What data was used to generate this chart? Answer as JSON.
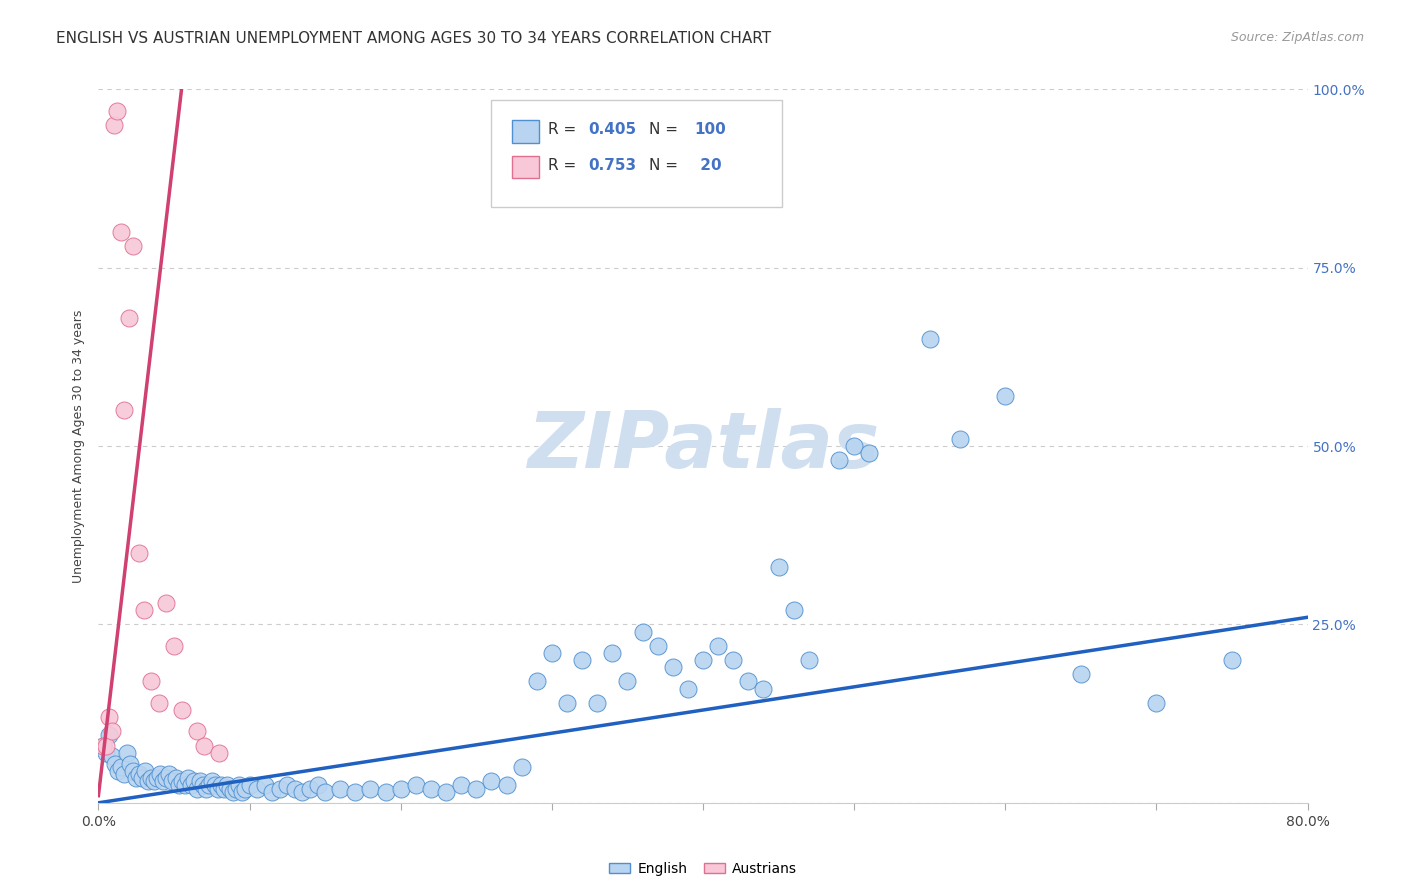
{
  "title": "ENGLISH VS AUSTRIAN UNEMPLOYMENT AMONG AGES 30 TO 34 YEARS CORRELATION CHART",
  "source": "Source: ZipAtlas.com",
  "ylabel": "Unemployment Among Ages 30 to 34 years",
  "english_R": "0.405",
  "english_N": "100",
  "austrian_R": "0.753",
  "austrian_N": "20",
  "english_color": "#b8d4f0",
  "english_edge_color": "#5090d0",
  "austrian_color": "#f8c8d8",
  "austrian_edge_color": "#e07090",
  "english_trend_color": "#2060c0",
  "austrian_trend_color": "#d04070",
  "watermark_color": "#d0dff0",
  "english_points": [
    [
      0.3,
      8.0
    ],
    [
      0.5,
      7.0
    ],
    [
      0.7,
      9.5
    ],
    [
      0.9,
      6.5
    ],
    [
      1.1,
      5.5
    ],
    [
      1.3,
      4.5
    ],
    [
      1.5,
      5.0
    ],
    [
      1.7,
      4.0
    ],
    [
      1.9,
      7.0
    ],
    [
      2.1,
      5.5
    ],
    [
      2.3,
      4.5
    ],
    [
      2.5,
      3.5
    ],
    [
      2.7,
      4.0
    ],
    [
      2.9,
      3.5
    ],
    [
      3.1,
      4.5
    ],
    [
      3.3,
      3.0
    ],
    [
      3.5,
      3.5
    ],
    [
      3.7,
      3.0
    ],
    [
      3.9,
      3.5
    ],
    [
      4.1,
      4.0
    ],
    [
      4.3,
      3.0
    ],
    [
      4.5,
      3.5
    ],
    [
      4.7,
      4.0
    ],
    [
      4.9,
      3.0
    ],
    [
      5.1,
      3.5
    ],
    [
      5.3,
      2.5
    ],
    [
      5.5,
      3.0
    ],
    [
      5.7,
      2.5
    ],
    [
      5.9,
      3.5
    ],
    [
      6.1,
      2.5
    ],
    [
      6.3,
      3.0
    ],
    [
      6.5,
      2.0
    ],
    [
      6.7,
      3.0
    ],
    [
      6.9,
      2.5
    ],
    [
      7.1,
      2.0
    ],
    [
      7.3,
      2.5
    ],
    [
      7.5,
      3.0
    ],
    [
      7.7,
      2.5
    ],
    [
      7.9,
      2.0
    ],
    [
      8.1,
      2.5
    ],
    [
      8.3,
      2.0
    ],
    [
      8.5,
      2.5
    ],
    [
      8.7,
      2.0
    ],
    [
      8.9,
      1.5
    ],
    [
      9.1,
      2.0
    ],
    [
      9.3,
      2.5
    ],
    [
      9.5,
      1.5
    ],
    [
      9.7,
      2.0
    ],
    [
      10.0,
      2.5
    ],
    [
      10.5,
      2.0
    ],
    [
      11.0,
      2.5
    ],
    [
      11.5,
      1.5
    ],
    [
      12.0,
      2.0
    ],
    [
      12.5,
      2.5
    ],
    [
      13.0,
      2.0
    ],
    [
      13.5,
      1.5
    ],
    [
      14.0,
      2.0
    ],
    [
      14.5,
      2.5
    ],
    [
      15.0,
      1.5
    ],
    [
      16.0,
      2.0
    ],
    [
      17.0,
      1.5
    ],
    [
      18.0,
      2.0
    ],
    [
      19.0,
      1.5
    ],
    [
      20.0,
      2.0
    ],
    [
      21.0,
      2.5
    ],
    [
      22.0,
      2.0
    ],
    [
      23.0,
      1.5
    ],
    [
      24.0,
      2.5
    ],
    [
      25.0,
      2.0
    ],
    [
      26.0,
      3.0
    ],
    [
      27.0,
      2.5
    ],
    [
      28.0,
      5.0
    ],
    [
      29.0,
      17.0
    ],
    [
      30.0,
      21.0
    ],
    [
      31.0,
      14.0
    ],
    [
      32.0,
      20.0
    ],
    [
      33.0,
      14.0
    ],
    [
      34.0,
      21.0
    ],
    [
      35.0,
      17.0
    ],
    [
      36.0,
      24.0
    ],
    [
      37.0,
      22.0
    ],
    [
      38.0,
      19.0
    ],
    [
      39.0,
      16.0
    ],
    [
      40.0,
      20.0
    ],
    [
      41.0,
      22.0
    ],
    [
      42.0,
      20.0
    ],
    [
      43.0,
      17.0
    ],
    [
      44.0,
      16.0
    ],
    [
      45.0,
      33.0
    ],
    [
      46.0,
      27.0
    ],
    [
      47.0,
      20.0
    ],
    [
      49.0,
      48.0
    ],
    [
      50.0,
      50.0
    ],
    [
      51.0,
      49.0
    ],
    [
      55.0,
      65.0
    ],
    [
      57.0,
      51.0
    ],
    [
      60.0,
      57.0
    ],
    [
      65.0,
      18.0
    ],
    [
      70.0,
      14.0
    ],
    [
      75.0,
      20.0
    ]
  ],
  "austrian_points": [
    [
      0.3,
      8.0
    ],
    [
      0.5,
      8.0
    ],
    [
      0.7,
      12.0
    ],
    [
      0.9,
      10.0
    ],
    [
      1.0,
      95.0
    ],
    [
      1.2,
      97.0
    ],
    [
      1.5,
      80.0
    ],
    [
      1.7,
      55.0
    ],
    [
      2.0,
      68.0
    ],
    [
      2.3,
      78.0
    ],
    [
      2.7,
      35.0
    ],
    [
      3.0,
      27.0
    ],
    [
      3.5,
      17.0
    ],
    [
      4.0,
      14.0
    ],
    [
      4.5,
      28.0
    ],
    [
      5.0,
      22.0
    ],
    [
      5.5,
      13.0
    ],
    [
      6.5,
      10.0
    ],
    [
      7.0,
      8.0
    ],
    [
      8.0,
      7.0
    ]
  ],
  "english_trend": [
    0.0,
    0.0,
    80.0,
    26.0
  ],
  "austrian_trend": [
    0.0,
    1.0,
    5.5,
    100.0
  ],
  "xlim": [
    0.0,
    80.0
  ],
  "ylim": [
    0.0,
    100.0
  ],
  "yticks": [
    0,
    25,
    50,
    75,
    100
  ],
  "ytick_labels": [
    "",
    "25.0%",
    "50.0%",
    "75.0%",
    "100.0%"
  ],
  "xtick_labels_left": "0.0%",
  "xtick_labels_right": "80.0%",
  "grid_color": "#cccccc",
  "background_color": "#ffffff",
  "title_fontsize": 11,
  "source_fontsize": 9,
  "axis_label_fontsize": 9,
  "tick_fontsize": 10,
  "legend_fontsize": 11,
  "right_tick_color": "#4472c4"
}
